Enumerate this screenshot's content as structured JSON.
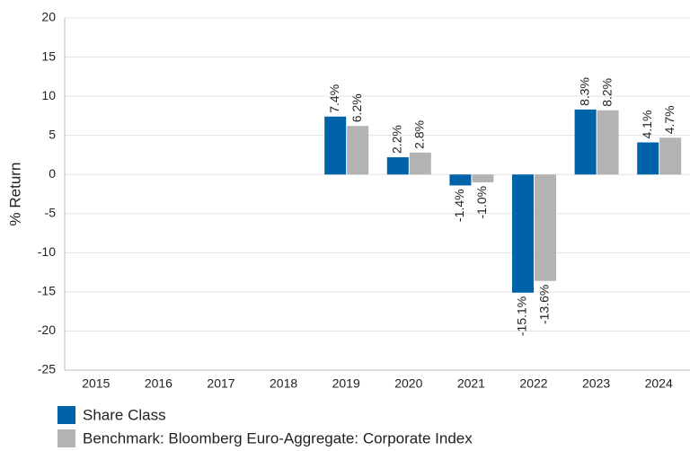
{
  "chart_data": {
    "type": "bar",
    "categories": [
      "2015",
      "2016",
      "2017",
      "2018",
      "2019",
      "2020",
      "2021",
      "2022",
      "2023",
      "2024"
    ],
    "series": [
      {
        "name": "Share Class",
        "color": "#0062a8",
        "values": [
          null,
          null,
          null,
          null,
          7.4,
          2.2,
          -1.4,
          -15.1,
          8.3,
          4.1
        ],
        "value_labels": [
          null,
          null,
          null,
          null,
          "7.4%",
          "2.2%",
          "-1.4%",
          "-15.1%",
          "8.3%",
          "4.1%"
        ]
      },
      {
        "name": "Benchmark: Bloomberg Euro-Aggregate: Corporate Index",
        "color": "#b3b3b3",
        "values": [
          null,
          null,
          null,
          null,
          6.2,
          2.8,
          -1.0,
          -13.6,
          8.2,
          4.7
        ],
        "value_labels": [
          null,
          null,
          null,
          null,
          "6.2%",
          "2.8%",
          "-1.0%",
          "-13.6%",
          "8.2%",
          "4.7%"
        ]
      }
    ],
    "ylabel": "% Return",
    "ylim": [
      -25,
      20
    ],
    "yticks": [
      -25,
      -20,
      -15,
      -10,
      -5,
      0,
      5,
      10,
      15,
      20
    ],
    "grid": true
  }
}
